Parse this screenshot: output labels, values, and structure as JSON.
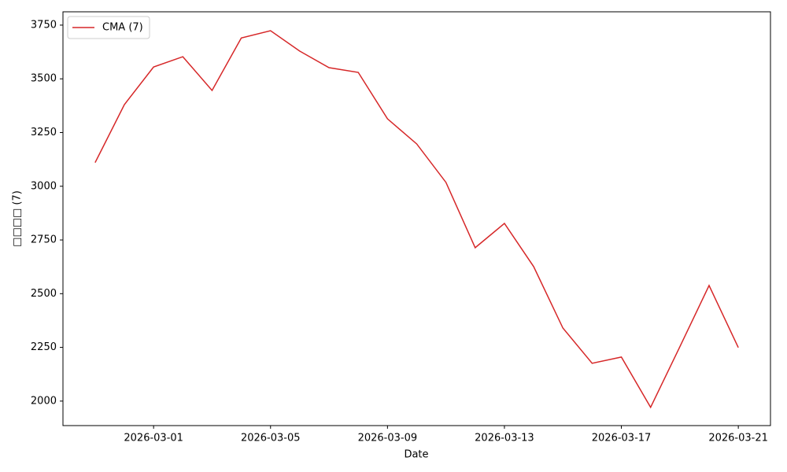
{
  "chart_data": {
    "type": "line",
    "xlabel": "Date",
    "ylabel": "□□□□ (7)",
    "x": [
      "2026-02-27",
      "2026-02-28",
      "2026-03-01",
      "2026-03-02",
      "2026-03-03",
      "2026-03-04",
      "2026-03-05",
      "2026-03-06",
      "2026-03-07",
      "2026-03-08",
      "2026-03-09",
      "2026-03-10",
      "2026-03-11",
      "2026-03-12",
      "2026-03-13",
      "2026-03-14",
      "2026-03-15",
      "2026-03-16",
      "2026-03-17",
      "2026-03-18",
      "2026-03-19",
      "2026-03-20",
      "2026-03-21"
    ],
    "series": [
      {
        "name": "CMA (7)",
        "color": "#d62728",
        "values": [
          3110,
          3380,
          3555,
          3603,
          3446,
          3690,
          3724,
          3629,
          3552,
          3530,
          3314,
          3197,
          3018,
          2714,
          2827,
          2626,
          2340,
          2176,
          2205,
          1971,
          2253,
          2538,
          2249
        ]
      }
    ],
    "xlim": [
      "2026-02-25T21:36",
      "2026-03-22T02:24"
    ],
    "xticks": [
      "2026-03-01",
      "2026-03-05",
      "2026-03-09",
      "2026-03-13",
      "2026-03-17",
      "2026-03-21"
    ],
    "ylim": [
      1886,
      3812
    ],
    "yticks": [
      2000,
      2250,
      2500,
      2750,
      3000,
      3250,
      3500,
      3750
    ],
    "legend": "upper left"
  }
}
